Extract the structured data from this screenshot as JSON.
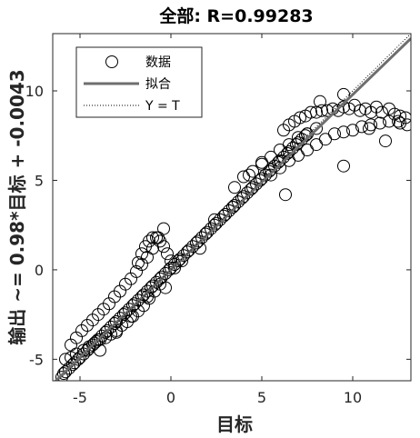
{
  "chart_data": {
    "type": "scatter",
    "title": "全部: R=0.99283",
    "xlabel": "目标",
    "ylabel": "输出 ~= 0.98*目标 + -0.0043",
    "xlim": [
      -6.5,
      13.2
    ],
    "ylim": [
      -6.2,
      13.2
    ],
    "xticks": [
      -5,
      0,
      5,
      10
    ],
    "yticks": [
      -5,
      0,
      5,
      10
    ],
    "grid": false,
    "legend_position": "top-left",
    "fit": {
      "slope": 0.98,
      "intercept": -0.0043
    },
    "series": [
      {
        "name": "数据",
        "marker": "open-circle",
        "color": "#000000",
        "x": [
          -6.0,
          -5.9,
          -5.8,
          -5.6,
          -5.4,
          -5.3,
          -5.1,
          -5.0,
          -4.8,
          -4.6,
          -4.5,
          -4.3,
          -4.1,
          -4.0,
          -3.8,
          -3.6,
          -3.5,
          -3.3,
          -3.1,
          -3.0,
          -2.8,
          -2.6,
          -2.5,
          -2.3,
          -2.1,
          -2.0,
          -1.8,
          -1.6,
          -1.5,
          -1.3,
          -1.1,
          -1.0,
          -0.8,
          -0.6,
          -0.5,
          -0.3,
          -0.1,
          0.0,
          0.2,
          0.4,
          0.5,
          0.7,
          0.9,
          1.0,
          1.2,
          1.4,
          1.5,
          1.7,
          1.9,
          2.0,
          2.2,
          2.4,
          2.5,
          2.7,
          2.9,
          3.0,
          3.2,
          3.4,
          3.5,
          3.7,
          3.9,
          4.0,
          4.2,
          4.4,
          4.5,
          4.7,
          4.9,
          5.0,
          5.2,
          5.4,
          5.5,
          5.7,
          5.9,
          6.0,
          6.2,
          6.4,
          6.5,
          6.7,
          6.9,
          7.0,
          7.2,
          7.4,
          7.5,
          -5.5,
          -5.2,
          -4.9,
          -4.6,
          -4.3,
          -4.0,
          -3.7,
          -3.4,
          -3.1,
          -2.8,
          -2.5,
          -2.2,
          -1.9,
          -1.6,
          -1.3,
          -1.0,
          -0.7,
          -0.4,
          -5.8,
          -5.5,
          -5.2,
          -4.8,
          -4.5,
          -4.2,
          -3.9,
          -3.6,
          -3.3,
          -3.0,
          -2.7,
          -2.4,
          -2.1,
          -1.8,
          -1.5,
          -1.2,
          -0.9,
          -0.6,
          -1.8,
          -1.6,
          -1.4,
          -1.2,
          -1.0,
          -0.8,
          -0.6,
          -0.4,
          -0.2,
          0.0,
          0.2,
          6.2,
          6.5,
          6.8,
          7.1,
          7.4,
          7.7,
          8.0,
          8.3,
          8.6,
          8.9,
          9.2,
          9.5,
          9.8,
          10.1,
          10.4,
          10.7,
          11.0,
          11.3,
          11.6,
          12.0,
          12.3,
          12.6,
          12.9,
          5.5,
          6.0,
          6.5,
          7.0,
          7.5,
          8.0,
          8.5,
          9.0,
          9.5,
          10.0,
          10.5,
          11.0,
          11.5,
          12.0,
          12.5,
          3.5,
          4.0,
          4.5,
          5.0,
          5.5,
          6.0,
          6.5,
          7.0,
          7.5,
          8.0,
          9.5,
          10.9,
          11.8,
          12.6,
          13.0,
          8.2,
          9.5,
          6.3,
          5.0,
          4.3,
          3.4,
          2.4,
          1.6,
          0.6,
          -0.3,
          -1.3,
          -2.2,
          -3.0,
          -3.9
        ],
        "y": [
          -6.0,
          -5.8,
          -5.7,
          -5.5,
          -5.3,
          -5.2,
          -5.0,
          -4.9,
          -4.7,
          -4.5,
          -4.4,
          -4.2,
          -4.0,
          -3.9,
          -3.7,
          -3.5,
          -3.4,
          -3.2,
          -3.0,
          -2.9,
          -2.7,
          -2.5,
          -2.4,
          -2.2,
          -2.0,
          -1.9,
          -1.7,
          -1.5,
          -1.4,
          -1.2,
          -1.0,
          -0.9,
          -0.7,
          -0.5,
          -0.4,
          -0.2,
          0.0,
          0.1,
          0.3,
          0.5,
          0.6,
          0.8,
          1.0,
          1.1,
          1.3,
          1.5,
          1.6,
          1.8,
          2.0,
          2.1,
          2.3,
          2.5,
          2.6,
          2.8,
          3.0,
          3.1,
          3.3,
          3.5,
          3.6,
          3.8,
          4.0,
          4.1,
          4.3,
          4.5,
          4.6,
          4.8,
          5.0,
          5.1,
          5.3,
          5.5,
          5.6,
          5.8,
          6.0,
          6.1,
          6.3,
          6.5,
          6.6,
          6.8,
          7.0,
          7.1,
          7.3,
          7.5,
          7.6,
          -4.2,
          -3.8,
          -3.4,
          -3.1,
          -2.8,
          -2.5,
          -2.2,
          -1.9,
          -1.5,
          -1.2,
          -0.8,
          -0.5,
          -0.1,
          0.3,
          0.7,
          1.2,
          1.8,
          2.3,
          -5.0,
          -4.9,
          -4.7,
          -4.5,
          -4.3,
          -4.1,
          -3.9,
          -3.8,
          -3.6,
          -3.4,
          -3.1,
          -2.9,
          -2.6,
          -2.3,
          -2.0,
          -1.6,
          -1.2,
          -0.8,
          0.4,
          0.9,
          1.3,
          1.6,
          1.8,
          1.8,
          1.6,
          1.3,
          0.9,
          0.5,
          0.1,
          7.8,
          8.1,
          8.3,
          8.5,
          8.6,
          8.8,
          8.8,
          8.9,
          8.9,
          9.0,
          8.9,
          9.1,
          9.0,
          9.2,
          8.9,
          9.0,
          8.8,
          9.1,
          8.8,
          9.0,
          8.7,
          8.6,
          8.5,
          5.3,
          5.7,
          6.1,
          6.4,
          6.7,
          7.0,
          7.3,
          7.6,
          7.7,
          7.8,
          8.0,
          8.1,
          8.2,
          8.3,
          8.3,
          4.6,
          5.2,
          5.5,
          6.0,
          6.3,
          6.7,
          7.0,
          7.4,
          7.6,
          7.9,
          5.8,
          7.9,
          7.2,
          8.2,
          8.1,
          9.4,
          9.8,
          4.2,
          5.9,
          5.3,
          3.5,
          2.8,
          1.2,
          0.5,
          -1.0,
          -1.5,
          -2.6,
          -3.5,
          -4.5
        ]
      },
      {
        "name": "拟合",
        "type": "line",
        "color": "#6e6e6e"
      },
      {
        "name": "Y = T",
        "type": "dotted-line",
        "color": "#000000"
      }
    ]
  }
}
